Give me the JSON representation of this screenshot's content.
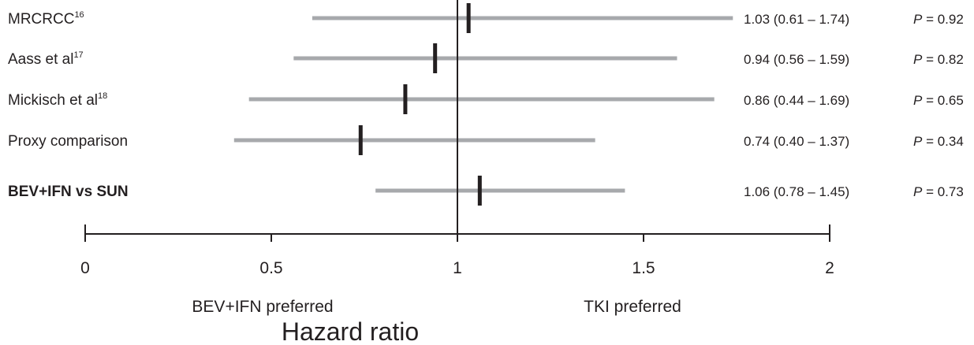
{
  "chart_data": {
    "type": "forest",
    "xlabel": "Hazard ratio",
    "xlim": [
      0,
      2
    ],
    "ticks": [
      0,
      0.5,
      1,
      1.5,
      2
    ],
    "tick_labels": [
      "0",
      "0.5",
      "1",
      "1.5",
      "2"
    ],
    "reference_line": 1,
    "direction_labels": {
      "left": "BEV+IFN preferred",
      "right": "TKI preferred"
    },
    "colors": {
      "ci_bar": "#a7a9ac",
      "estimate": "#231f20",
      "text": "#231f20"
    },
    "rows": [
      {
        "study": "MRCRCC",
        "ref": "16",
        "hr": 1.03,
        "lo": 0.61,
        "hi": 1.74,
        "ci_text": "1.03 (0.61 – 1.74)",
        "p_label": "P",
        "p_value": "= 0.92",
        "bold": false
      },
      {
        "study": "Aass et al",
        "ref": "17",
        "hr": 0.94,
        "lo": 0.56,
        "hi": 1.59,
        "ci_text": "0.94 (0.56 – 1.59)",
        "p_label": "P",
        "p_value": "= 0.82",
        "bold": false
      },
      {
        "study": "Mickisch et al",
        "ref": "18",
        "hr": 0.86,
        "lo": 0.44,
        "hi": 1.69,
        "ci_text": "0.86 (0.44 – 1.69)",
        "p_label": "P",
        "p_value": "= 0.65",
        "bold": false
      },
      {
        "study": "Proxy comparison",
        "ref": "",
        "hr": 0.74,
        "lo": 0.4,
        "hi": 1.37,
        "ci_text": "0.74 (0.40 – 1.37)",
        "p_label": "P",
        "p_value": "= 0.34",
        "bold": false
      },
      {
        "study": "BEV+IFN vs SUN",
        "ref": "",
        "hr": 1.06,
        "lo": 0.78,
        "hi": 1.45,
        "ci_text": "1.06 (0.78 – 1.45)",
        "p_label": "P",
        "p_value": "= 0.73",
        "bold": true
      }
    ]
  }
}
